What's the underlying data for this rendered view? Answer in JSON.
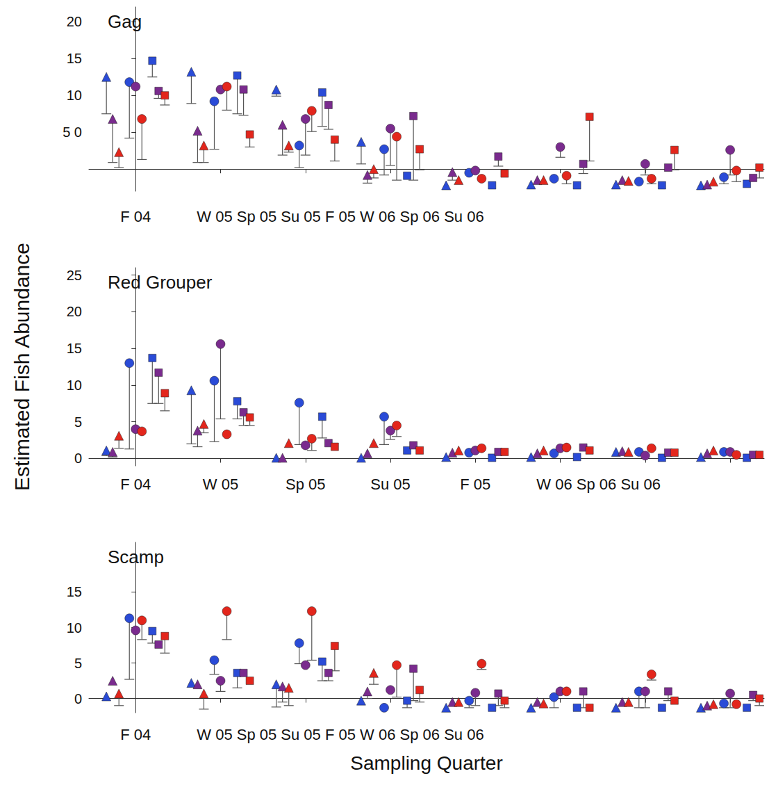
{
  "chart_data": [
    {
      "type": "scatter",
      "title": "Gag",
      "categories": [
        "F 04",
        null,
        null,
        null,
        null,
        null,
        null,
        null
      ],
      "annotation": "W 05 Sp 05 Su 05 F 05 W 06 Sp 06 Su 06",
      "ylim": [
        -3,
        22
      ],
      "yticks": [
        {
          "value": 5,
          "label": "5 0"
        },
        10,
        15,
        20
      ],
      "series": [
        {
          "color": "#2a4bd7",
          "marker": "triangle",
          "values": [
            12.5,
            13.2,
            10.8,
            3.7,
            -2.2,
            -2.1,
            -2.1,
            -2.2
          ],
          "whisker_end": [
            7.5,
            8.9,
            9.9,
            0.7,
            null,
            null,
            null,
            null
          ]
        },
        {
          "color": "#7a2b8e",
          "marker": "triangle",
          "values": [
            6.8,
            5.2,
            6.0,
            -0.8,
            -0.4,
            -1.5,
            -1.5,
            -2.1
          ],
          "whisker_end": [
            0.9,
            0.9,
            1.9,
            -1.9,
            -1.5,
            null,
            null,
            null
          ]
        },
        {
          "color": "#e3261c",
          "marker": "triangle",
          "values": [
            2.3,
            3.2,
            3.2,
            0,
            -1.5,
            -1.5,
            -1.6,
            -1.7
          ],
          "whisker_end": [
            0.2,
            0.9,
            2.3,
            -1.2,
            null,
            null,
            null,
            null
          ]
        },
        {
          "color": "#2a4bd7",
          "marker": "circle",
          "values": [
            11.8,
            9.2,
            3.2,
            2.7,
            -0.5,
            -1.3,
            -1.7,
            -1.1
          ],
          "whisker_end": [
            4.2,
            2.7,
            0.2,
            -0.8,
            null,
            null,
            null,
            -2.0
          ]
        },
        {
          "color": "#7a2b8e",
          "marker": "circle",
          "values": [
            11.2,
            10.8,
            6.8,
            5.5,
            -0.2,
            3.0,
            0.7,
            2.6
          ],
          "whisker_end": [
            null,
            null,
            1.9,
            0.5,
            null,
            1.6,
            -0.8,
            -0.8
          ]
        },
        {
          "color": "#e3261c",
          "marker": "circle",
          "values": [
            6.8,
            11.2,
            7.9,
            4.4,
            -1.3,
            -0.9,
            -1.3,
            -0.2
          ],
          "whisker_end": [
            1.3,
            8.0,
            5.1,
            -1.5,
            null,
            -2.0,
            -2.0,
            -1.7
          ]
        },
        {
          "color": "#2a4bd7",
          "marker": "square",
          "values": [
            14.7,
            12.7,
            10.4,
            -0.9,
            -2.2,
            -2.2,
            -2.2,
            -2.0
          ],
          "whisker_end": [
            12.5,
            7.5,
            5.8,
            null,
            null,
            null,
            null,
            null
          ]
        },
        {
          "color": "#7a2b8e",
          "marker": "square",
          "values": [
            10.6,
            10.8,
            8.7,
            7.2,
            1.7,
            0.7,
            0.2,
            -1.2
          ],
          "whisker_end": [
            9.6,
            7.3,
            5.4,
            -1.5,
            0.4,
            -0.6,
            null,
            null
          ]
        },
        {
          "color": "#e3261c",
          "marker": "square",
          "values": [
            10,
            4.7,
            4.0,
            2.7,
            -0.6,
            7.1,
            2.6,
            0.2
          ],
          "whisker_end": [
            8.7,
            3.0,
            1.1,
            -0.1,
            null,
            1.1,
            -0.1,
            -1.2
          ]
        }
      ]
    },
    {
      "type": "scatter",
      "title": "Red Grouper",
      "ylabel": "Estimated Fish Abundance",
      "categories": [
        "F 04",
        "W 05",
        "Sp 05",
        "Su 05",
        "F 05",
        null,
        null,
        null
      ],
      "annotation": "W 06 Sp 06 Su 06",
      "ylim": [
        -1,
        26
      ],
      "yticks": [
        0,
        5,
        10,
        15,
        20,
        25
      ],
      "series": [
        {
          "color": "#2a4bd7",
          "marker": "triangle",
          "values": [
            1.1,
            9.3,
            0.1,
            0.1,
            0.2,
            0.2,
            0.9,
            0.2
          ],
          "whisker_end": [
            0.4,
            2.0,
            null,
            null,
            null,
            null,
            null,
            null
          ]
        },
        {
          "color": "#7a2b8e",
          "marker": "triangle",
          "values": [
            0.9,
            3.8,
            0.1,
            0.7,
            0.8,
            0.7,
            1.0,
            0.7
          ],
          "whisker_end": [
            0.2,
            1.6,
            null,
            null,
            null,
            null,
            null,
            null
          ]
        },
        {
          "color": "#e3261c",
          "marker": "triangle",
          "values": [
            3.1,
            4.7,
            2.1,
            2.1,
            1.1,
            1.1,
            0.9,
            1.1
          ],
          "whisker_end": [
            1.4,
            3.5,
            null,
            null,
            null,
            null,
            null,
            null
          ]
        },
        {
          "color": "#2a4bd7",
          "marker": "circle",
          "values": [
            13.0,
            10.6,
            7.6,
            5.7,
            0.8,
            0.7,
            0.9,
            0.9
          ],
          "whisker_end": [
            1.3,
            2.3,
            1.9,
            1.9,
            null,
            null,
            null,
            null
          ]
        },
        {
          "color": "#7a2b8e",
          "marker": "circle",
          "values": [
            4.0,
            15.6,
            1.8,
            3.8,
            1.1,
            1.4,
            0.4,
            0.9
          ],
          "whisker_end": [
            null,
            5.4,
            null,
            2.6,
            null,
            null,
            null,
            null
          ]
        },
        {
          "color": "#e3261c",
          "marker": "circle",
          "values": [
            3.7,
            3.3,
            2.7,
            4.5,
            1.4,
            1.5,
            1.4,
            0.5
          ],
          "whisker_end": [
            null,
            null,
            1.1,
            3.0,
            null,
            null,
            null,
            null
          ]
        },
        {
          "color": "#2a4bd7",
          "marker": "square",
          "values": [
            13.7,
            7.8,
            5.7,
            1.1,
            0.1,
            0.2,
            0.1,
            0.1
          ],
          "whisker_end": [
            7.5,
            5.4,
            2.8,
            null,
            null,
            null,
            null,
            null
          ]
        },
        {
          "color": "#7a2b8e",
          "marker": "square",
          "values": [
            11.7,
            6.3,
            2.1,
            1.8,
            0.9,
            1.5,
            0.8,
            0.5
          ],
          "whisker_end": [
            7.5,
            4.5,
            null,
            null,
            null,
            null,
            null,
            null
          ]
        },
        {
          "color": "#e3261c",
          "marker": "square",
          "values": [
            8.9,
            5.6,
            1.6,
            1.1,
            0.9,
            1.1,
            0.8,
            0.5
          ],
          "whisker_end": [
            6.5,
            4.5,
            null,
            null,
            null,
            null,
            null,
            null
          ]
        }
      ]
    },
    {
      "type": "scatter",
      "title": "Scamp",
      "xlabel": "Sampling Quarter",
      "categories": [
        "F 04",
        null,
        null,
        null,
        null,
        null,
        null,
        null
      ],
      "annotation": "W 05 Sp 05 Su 05 F 05 W 06 Sp 06 Su 06",
      "ylim": [
        -2,
        22
      ],
      "yticks": [
        0,
        5,
        10,
        15
      ],
      "series": [
        {
          "color": "#2a4bd7",
          "marker": "triangle",
          "values": [
            0.3,
            2.2,
            2.0,
            -0.3,
            -1.3,
            -1.3,
            -1.3,
            -1.3
          ],
          "whisker_end": [
            null,
            null,
            -1.2,
            null,
            null,
            null,
            null,
            null
          ]
        },
        {
          "color": "#7a2b8e",
          "marker": "triangle",
          "values": [
            2.5,
            2.0,
            1.7,
            1.0,
            -0.5,
            -0.5,
            -0.5,
            -1.0
          ],
          "whisker_end": [
            null,
            null,
            -0.5,
            0,
            null,
            null,
            null,
            null
          ]
        },
        {
          "color": "#e3261c",
          "marker": "triangle",
          "values": [
            0.7,
            0.7,
            1.5,
            3.6,
            -0.5,
            -0.7,
            -0.5,
            -0.8
          ],
          "whisker_end": [
            -1.0,
            -1.5,
            -1.0,
            2.0,
            null,
            null,
            null,
            null
          ]
        },
        {
          "color": "#2a4bd7",
          "marker": "circle",
          "values": [
            11.3,
            5.4,
            7.8,
            -1.3,
            -0.3,
            0.2,
            1.0,
            -0.7
          ],
          "whisker_end": [
            2.7,
            3.4,
            4.9,
            null,
            -1.3,
            -1.3,
            -1.3,
            -1.3
          ]
        },
        {
          "color": "#7a2b8e",
          "marker": "circle",
          "values": [
            9.6,
            2.5,
            4.7,
            1.2,
            0.8,
            1.0,
            1.0,
            0.7
          ],
          "whisker_end": [
            null,
            1.0,
            null,
            null,
            -1.0,
            null,
            -1.3,
            -1.3
          ]
        },
        {
          "color": "#e3261c",
          "marker": "circle",
          "values": [
            11.0,
            12.3,
            12.3,
            4.7,
            4.9,
            1.0,
            3.4,
            -0.8
          ],
          "whisker_end": [
            8.3,
            8.3,
            5.4,
            0.2,
            4.1,
            null,
            2.6,
            null
          ]
        },
        {
          "color": "#2a4bd7",
          "marker": "square",
          "values": [
            9.5,
            3.6,
            5.2,
            -0.3,
            -1.3,
            -1.3,
            -1.3,
            -1.3
          ],
          "whisker_end": [
            7.8,
            1.5,
            2.5,
            -1.3,
            null,
            null,
            null,
            null
          ]
        },
        {
          "color": "#7a2b8e",
          "marker": "square",
          "values": [
            7.6,
            3.6,
            3.6,
            4.2,
            0.7,
            1.0,
            1.0,
            0.5
          ],
          "whisker_end": [
            null,
            null,
            2.5,
            -0.3,
            -1.0,
            -1.3,
            -0.3,
            -0.3
          ]
        },
        {
          "color": "#e3261c",
          "marker": "square",
          "values": [
            8.8,
            2.5,
            7.4,
            1.2,
            -0.3,
            -1.3,
            -0.3,
            0
          ],
          "whisker_end": [
            6.4,
            null,
            3.9,
            -0.5,
            -1.3,
            null,
            null,
            -1.0
          ]
        }
      ]
    }
  ]
}
